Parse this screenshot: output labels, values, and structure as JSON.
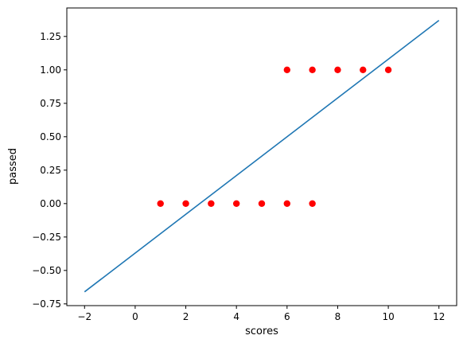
{
  "chart_data": {
    "type": "scatter",
    "xlabel": "scores",
    "ylabel": "passed",
    "xlim": [
      -2.7,
      12.7
    ],
    "ylim": [
      -0.763,
      1.463
    ],
    "xticks": [
      -2,
      0,
      2,
      4,
      6,
      8,
      10,
      12
    ],
    "yticks": [
      -0.75,
      -0.5,
      -0.25,
      0.0,
      0.25,
      0.5,
      0.75,
      1.0,
      1.25
    ],
    "xtick_labels": [
      "−2",
      "0",
      "2",
      "4",
      "6",
      "8",
      "10",
      "12"
    ],
    "ytick_labels": [
      "−0.75",
      "−0.50",
      "−0.25",
      "0.00",
      "0.25",
      "0.50",
      "0.75",
      "1.00",
      "1.25"
    ],
    "grid": false,
    "series": [
      {
        "type": "scatter",
        "color": "#ff0000",
        "points": [
          [
            1,
            0
          ],
          [
            2,
            0
          ],
          [
            3,
            0
          ],
          [
            4,
            0
          ],
          [
            5,
            0
          ],
          [
            6,
            0
          ],
          [
            7,
            0
          ],
          [
            6,
            1
          ],
          [
            7,
            1
          ],
          [
            8,
            1
          ],
          [
            9,
            1
          ],
          [
            10,
            1
          ]
        ]
      },
      {
        "type": "line",
        "color": "#1f77b4",
        "points": [
          [
            -2,
            -0.66
          ],
          [
            12,
            1.37
          ]
        ]
      }
    ]
  }
}
